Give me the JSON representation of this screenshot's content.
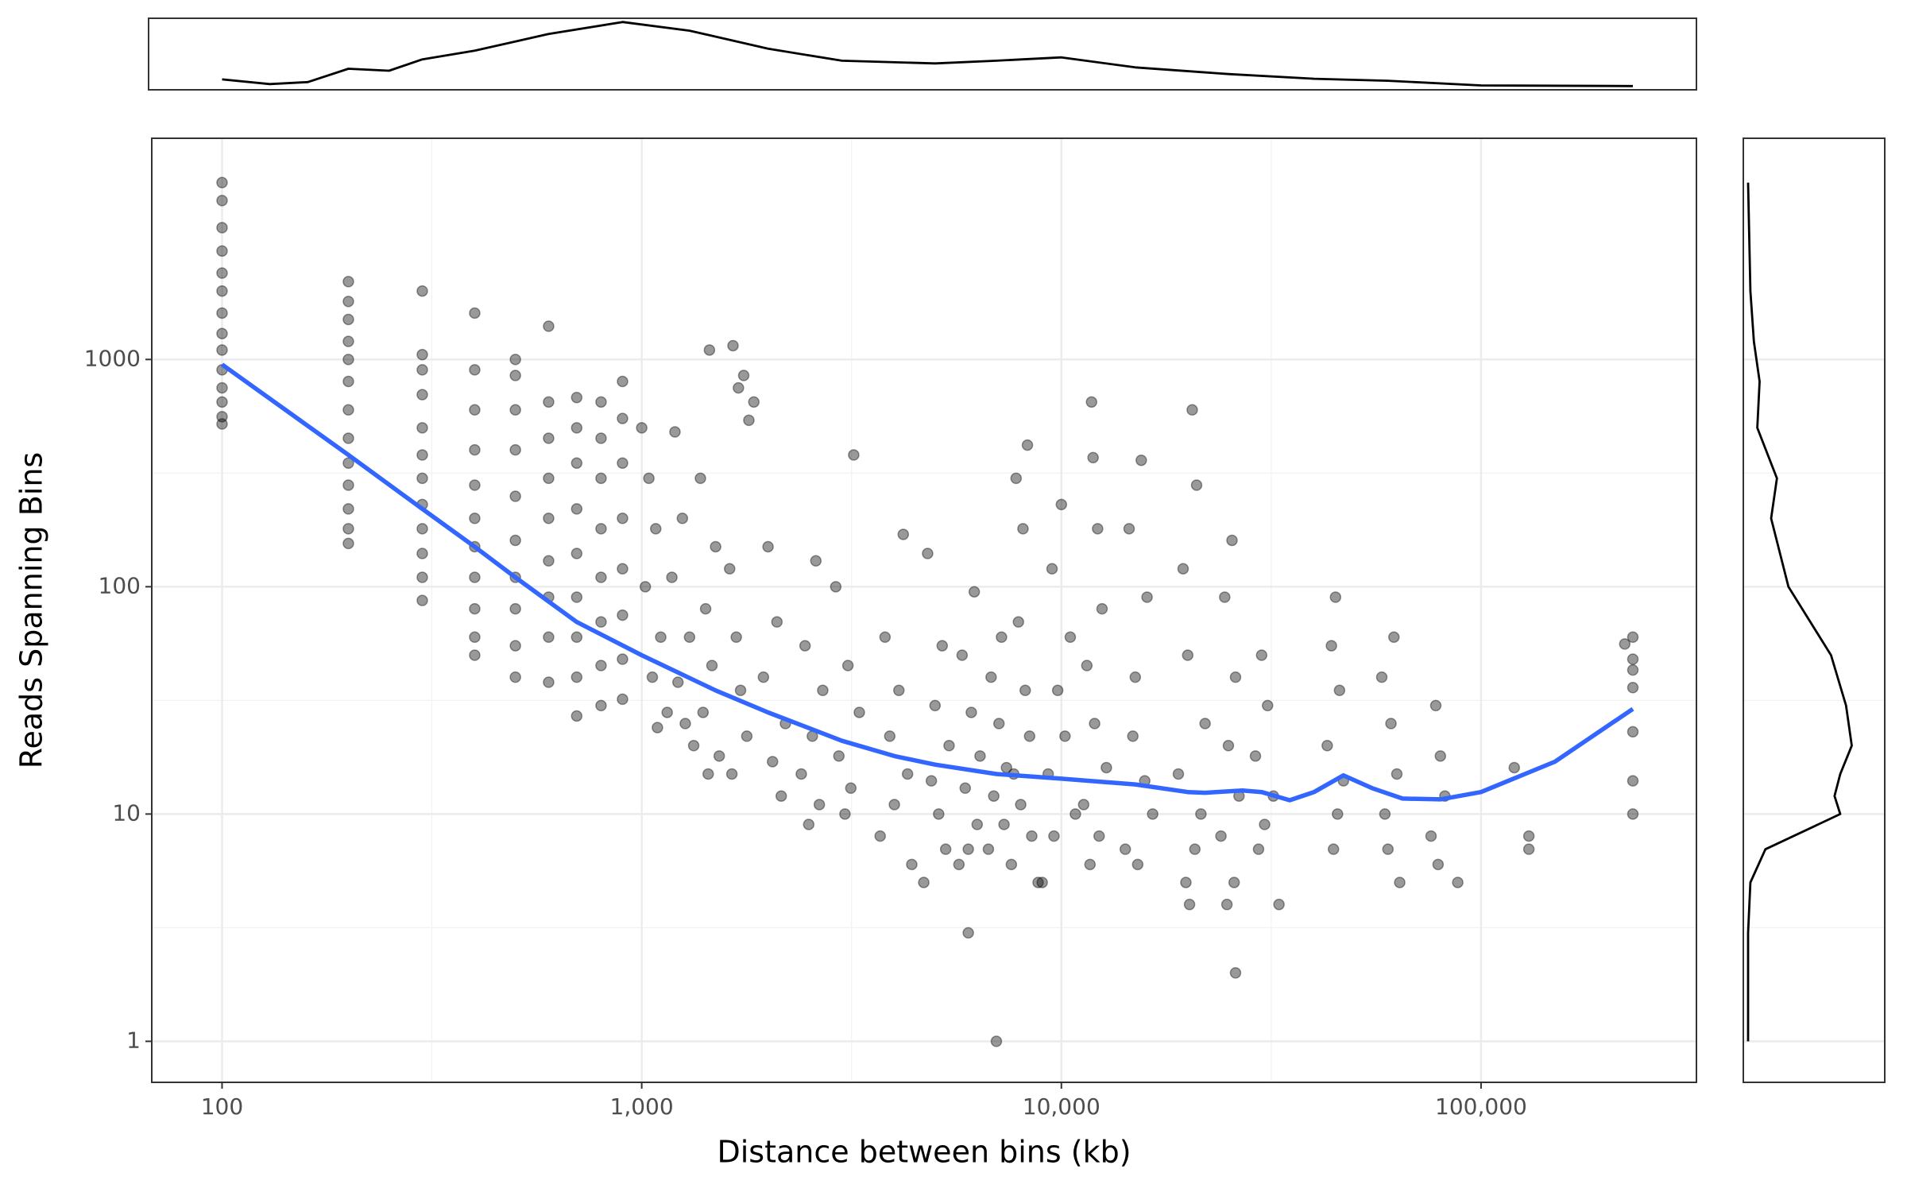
{
  "chart_data": [
    {
      "type": "scatter",
      "xlabel": "Distance between bins (kb)",
      "ylabel": "Reads Spanning Bins",
      "log_x": true,
      "log_y": true,
      "grid": true,
      "minor_grid": true,
      "color": "#000000",
      "opacity": 0.4,
      "xlim": [
        68,
        326000
      ],
      "ylim": [
        0.66,
        9400
      ],
      "xticks": [
        100,
        {
          "value": 1000,
          "label": "1,000"
        },
        {
          "value": 10000,
          "label": "10,000"
        },
        {
          "value": 100000,
          "label": "100,000"
        }
      ],
      "yticks": [
        1,
        10,
        100,
        1000
      ],
      "x": [
        100,
        100,
        100,
        100,
        100,
        100,
        100,
        100,
        100,
        100,
        100,
        100,
        100,
        100,
        200,
        200,
        200,
        200,
        200,
        200,
        200,
        200,
        200,
        200,
        200,
        200,
        200,
        300,
        300,
        300,
        300,
        300,
        300,
        300,
        300,
        300,
        300,
        300,
        300,
        400,
        400,
        400,
        400,
        400,
        400,
        400,
        400,
        400,
        400,
        400,
        500,
        500,
        500,
        500,
        500,
        500,
        500,
        500,
        500,
        500,
        600,
        600,
        600,
        600,
        600,
        600,
        600,
        600,
        600,
        700,
        700,
        700,
        700,
        700,
        700,
        700,
        700,
        700,
        800,
        800,
        800,
        800,
        800,
        800,
        800,
        800,
        900,
        900,
        900,
        900,
        900,
        900,
        900,
        900,
        1000,
        1040,
        1080,
        1020,
        1110,
        1060,
        1150,
        1090,
        1200,
        1250,
        1180,
        1300,
        1220,
        1270,
        1330,
        1450,
        1380,
        1500,
        1420,
        1470,
        1400,
        1530,
        1440,
        1650,
        1700,
        1750,
        1850,
        1800,
        1620,
        1680,
        1720,
        1780,
        1640,
        2000,
        2100,
        1950,
        2200,
        2050,
        2150,
        2600,
        2450,
        2700,
        2550,
        2400,
        2650,
        2500,
        3200,
        2900,
        3100,
        3300,
        2950,
        3150,
        3050,
        4200,
        3800,
        4100,
        3900,
        4300,
        4000,
        3700,
        4400,
        4800,
        5200,
        5000,
        5400,
        4900,
        5100,
        5300,
        4700,
        6200,
        5800,
        6100,
        6400,
        5900,
        6300,
        6000,
        5700,
        6000,
        7200,
        6800,
        7100,
        7400,
        6900,
        7300,
        6700,
        7000,
        8300,
        7800,
        8100,
        7900,
        8200,
        8400,
        7700,
        8000,
        8500,
        7600,
        8800,
        10000,
        9500,
        10500,
        9800,
        10200,
        9300,
        10800,
        9600,
        9000,
        11800,
        11900,
        12200,
        12500,
        11500,
        12000,
        12800,
        11300,
        12300,
        11700,
        15500,
        14500,
        16000,
        15000,
        14800,
        15800,
        16500,
        14200,
        15200,
        20500,
        21000,
        19500,
        20000,
        22000,
        19000,
        21500,
        20800,
        19800,
        20200,
        25500,
        24500,
        26000,
        25000,
        26500,
        24000,
        25800,
        24800,
        26000,
        30000,
        31000,
        29000,
        32000,
        30500,
        29500,
        33000,
        45000,
        44000,
        46000,
        43000,
        47000,
        45500,
        44500,
        62000,
        58000,
        61000,
        63000,
        59000,
        60000,
        64000,
        78000,
        80000,
        82000,
        76000,
        79000,
        88000,
        120000,
        130000,
        130000,
        220000,
        230000,
        230000,
        230000,
        230000,
        230000,
        230000,
        230000
      ],
      "values": [
        6000,
        5000,
        3800,
        3000,
        2400,
        2000,
        1600,
        1300,
        1100,
        900,
        750,
        650,
        560,
        520,
        2200,
        1800,
        1500,
        1200,
        1000,
        800,
        600,
        450,
        350,
        280,
        220,
        180,
        155,
        2000,
        1050,
        900,
        700,
        500,
        380,
        300,
        230,
        180,
        140,
        110,
        87,
        1600,
        900,
        600,
        400,
        280,
        200,
        150,
        110,
        80,
        60,
        50,
        1000,
        850,
        600,
        400,
        250,
        160,
        110,
        80,
        55,
        40,
        1400,
        650,
        450,
        300,
        200,
        130,
        90,
        60,
        38,
        680,
        500,
        350,
        220,
        140,
        90,
        60,
        40,
        27,
        650,
        450,
        300,
        180,
        110,
        70,
        45,
        30,
        800,
        550,
        350,
        200,
        120,
        75,
        48,
        32,
        500,
        300,
        180,
        100,
        60,
        40,
        28,
        24,
        480,
        200,
        110,
        60,
        38,
        25,
        20,
        1100,
        300,
        150,
        80,
        45,
        28,
        18,
        15,
        1150,
        750,
        850,
        650,
        540,
        120,
        60,
        35,
        22,
        15,
        150,
        70,
        40,
        25,
        17,
        12,
        130,
        55,
        35,
        22,
        15,
        11,
        9,
        380,
        100,
        45,
        28,
        18,
        13,
        10,
        170,
        60,
        35,
        22,
        15,
        11,
        8,
        6,
        140,
        55,
        30,
        20,
        14,
        10,
        7,
        5,
        95,
        50,
        28,
        18,
        13,
        9,
        7,
        6,
        3,
        60,
        40,
        25,
        16,
        12,
        9,
        7,
        1,
        420,
        300,
        180,
        70,
        35,
        22,
        15,
        11,
        8,
        6,
        5,
        230,
        120,
        60,
        35,
        22,
        15,
        10,
        8,
        5,
        650,
        370,
        180,
        80,
        45,
        25,
        16,
        11,
        8,
        6,
        360,
        180,
        90,
        40,
        22,
        14,
        10,
        7,
        6,
        600,
        280,
        120,
        50,
        25,
        15,
        10,
        7,
        5,
        4,
        160,
        90,
        40,
        20,
        12,
        8,
        5,
        4,
        2,
        50,
        30,
        18,
        12,
        9,
        7,
        4,
        90,
        55,
        35,
        20,
        14,
        10,
        7,
        60,
        40,
        25,
        15,
        10,
        7,
        5,
        30,
        18,
        12,
        8,
        6,
        5,
        16,
        8,
        7,
        56,
        60,
        48,
        43,
        36,
        23,
        14,
        10
      ]
    },
    {
      "type": "line",
      "color": "#3366ff",
      "x": [
        100,
        200,
        300,
        400,
        500,
        700,
        1000,
        1500,
        2000,
        3000,
        4000,
        5000,
        7000,
        10000,
        15000,
        20000,
        22000,
        27000,
        30000,
        35000,
        40000,
        47000,
        55000,
        65000,
        80000,
        100000,
        150000,
        230000
      ],
      "values": [
        950,
        380,
        220,
        150,
        110,
        70,
        50,
        35,
        28,
        21,
        18,
        16.5,
        15,
        14.3,
        13.5,
        12.5,
        12.4,
        12.7,
        12.5,
        11.5,
        12.5,
        14.8,
        13,
        11.7,
        11.6,
        12.5,
        17,
        29
      ]
    },
    {
      "type": "density",
      "orientation": "horizontal",
      "color": "#000000",
      "ylim": [
        0,
        1
      ],
      "x": [
        100,
        130,
        160,
        200,
        250,
        300,
        400,
        600,
        900,
        1300,
        2000,
        3000,
        5000,
        7000,
        10000,
        15000,
        25000,
        40000,
        60000,
        100000,
        230000
      ],
      "values": [
        0.12,
        0.05,
        0.08,
        0.28,
        0.25,
        0.42,
        0.55,
        0.8,
        0.98,
        0.85,
        0.58,
        0.4,
        0.36,
        0.4,
        0.45,
        0.3,
        0.2,
        0.13,
        0.1,
        0.03,
        0.02
      ]
    },
    {
      "type": "density",
      "orientation": "vertical",
      "color": "#000000",
      "xlim": [
        0,
        1
      ],
      "y": [
        1,
        3,
        5,
        7,
        10,
        12,
        15,
        20,
        30,
        50,
        100,
        200,
        300,
        500,
        800,
        1200,
        2000,
        6000
      ],
      "values": [
        0,
        0,
        0.02,
        0.15,
        0.8,
        0.75,
        0.8,
        0.9,
        0.85,
        0.72,
        0.35,
        0.2,
        0.25,
        0.08,
        0.1,
        0.05,
        0.02,
        0
      ]
    }
  ]
}
